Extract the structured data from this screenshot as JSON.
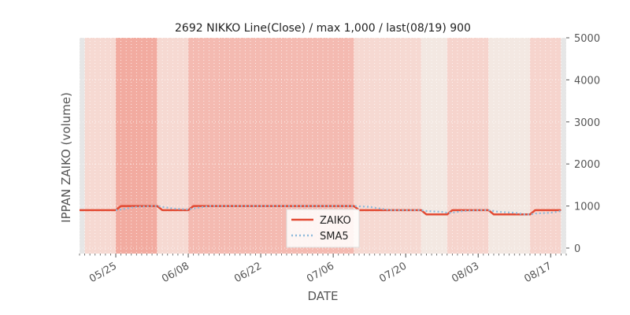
{
  "chart_data": {
    "type": "line",
    "title": "2692 NIKKO Line(Close) / max 1,000 / last(08/19) 900",
    "xlabel": "DATE",
    "ylabel": "IPPAN ZAIKO (volume)",
    "ylim": [
      0,
      5000
    ],
    "y_ticks": [
      0,
      1000,
      2000,
      3000,
      4000,
      5000
    ],
    "y_axis_side": "right",
    "x_range": [
      "2020-05-18",
      "2020-08-20"
    ],
    "x_ticks": [
      "05/25",
      "06/08",
      "06/22",
      "07/06",
      "07/20",
      "08/03",
      "08/17"
    ],
    "x_tick_dates": [
      "2020-05-25",
      "2020-06-08",
      "2020-06-22",
      "2020-07-06",
      "2020-07-20",
      "2020-08-03",
      "2020-08-17"
    ],
    "grid": true,
    "legend": "bottom-center",
    "background_bands": [
      {
        "from": "2020-05-18",
        "to": "2020-05-19",
        "color": "#e6e6e6"
      },
      {
        "from": "2020-05-19",
        "to": "2020-05-25",
        "color": "#f6d9d2"
      },
      {
        "from": "2020-05-25",
        "to": "2020-06-02",
        "color": "#f2aba0"
      },
      {
        "from": "2020-06-02",
        "to": "2020-06-08",
        "color": "#f6d9d2"
      },
      {
        "from": "2020-06-08",
        "to": "2020-07-10",
        "color": "#f4bab1"
      },
      {
        "from": "2020-07-10",
        "to": "2020-07-23",
        "color": "#f6d9d2"
      },
      {
        "from": "2020-07-23",
        "to": "2020-07-28",
        "color": "#f3e8e2"
      },
      {
        "from": "2020-07-28",
        "to": "2020-08-05",
        "color": "#f6d4cd"
      },
      {
        "from": "2020-08-05",
        "to": "2020-08-13",
        "color": "#f3e8e2"
      },
      {
        "from": "2020-08-13",
        "to": "2020-08-19",
        "color": "#f6d4cd"
      },
      {
        "from": "2020-08-19",
        "to": "2020-08-20",
        "color": "#e6e6e6"
      }
    ],
    "series": [
      {
        "name": "ZAIKO",
        "color": "#e24a33",
        "style": "solid",
        "points": [
          [
            "2020-05-18",
            900
          ],
          [
            "2020-05-25",
            900
          ],
          [
            "2020-05-26",
            1000
          ],
          [
            "2020-06-02",
            1000
          ],
          [
            "2020-06-03",
            900
          ],
          [
            "2020-06-08",
            900
          ],
          [
            "2020-06-09",
            1000
          ],
          [
            "2020-07-10",
            1000
          ],
          [
            "2020-07-11",
            900
          ],
          [
            "2020-07-23",
            900
          ],
          [
            "2020-07-24",
            800
          ],
          [
            "2020-07-28",
            800
          ],
          [
            "2020-07-29",
            900
          ],
          [
            "2020-08-05",
            900
          ],
          [
            "2020-08-06",
            800
          ],
          [
            "2020-08-13",
            800
          ],
          [
            "2020-08-14",
            900
          ],
          [
            "2020-08-19",
            900
          ]
        ]
      },
      {
        "name": "SMA5",
        "color": "#8ebadb",
        "style": "dotted",
        "points": [
          [
            "2020-05-25",
            900
          ],
          [
            "2020-05-26",
            920
          ],
          [
            "2020-05-27",
            940
          ],
          [
            "2020-05-28",
            960
          ],
          [
            "2020-05-29",
            980
          ],
          [
            "2020-06-01",
            1000
          ],
          [
            "2020-06-02",
            1000
          ],
          [
            "2020-06-03",
            980
          ],
          [
            "2020-06-04",
            960
          ],
          [
            "2020-06-05",
            940
          ],
          [
            "2020-06-08",
            920
          ],
          [
            "2020-06-09",
            940
          ],
          [
            "2020-06-10",
            960
          ],
          [
            "2020-06-11",
            980
          ],
          [
            "2020-06-12",
            1000
          ],
          [
            "2020-07-10",
            1000
          ],
          [
            "2020-07-13",
            980
          ],
          [
            "2020-07-14",
            960
          ],
          [
            "2020-07-15",
            940
          ],
          [
            "2020-07-16",
            920
          ],
          [
            "2020-07-17",
            900
          ],
          [
            "2020-07-23",
            900
          ],
          [
            "2020-07-24",
            880
          ],
          [
            "2020-07-27",
            860
          ],
          [
            "2020-07-28",
            840
          ],
          [
            "2020-07-29",
            840
          ],
          [
            "2020-07-30",
            860
          ],
          [
            "2020-07-31",
            880
          ],
          [
            "2020-08-03",
            900
          ],
          [
            "2020-08-05",
            900
          ],
          [
            "2020-08-06",
            880
          ],
          [
            "2020-08-07",
            860
          ],
          [
            "2020-08-10",
            840
          ],
          [
            "2020-08-11",
            820
          ],
          [
            "2020-08-12",
            800
          ],
          [
            "2020-08-13",
            800
          ],
          [
            "2020-08-14",
            820
          ],
          [
            "2020-08-17",
            840
          ],
          [
            "2020-08-18",
            860
          ],
          [
            "2020-08-19",
            880
          ]
        ]
      }
    ]
  }
}
